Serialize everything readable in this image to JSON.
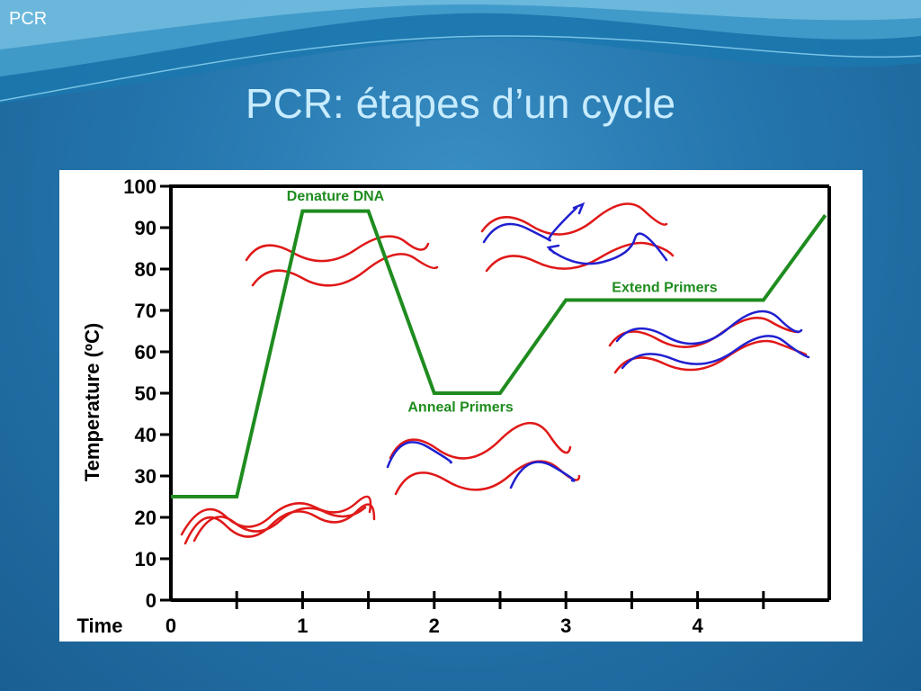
{
  "header": {
    "corner_label": "PCR"
  },
  "slide": {
    "title": "PCR: étapes d’un cycle"
  },
  "colors": {
    "curve": "#1f8c1f",
    "dna_strand": "#e01818",
    "primer": "#2020d0",
    "annotation": "#1f8c1f"
  },
  "chart_data": {
    "type": "line",
    "title": "",
    "xlabel": "Time",
    "ylabel": "Temperature (ºC)",
    "xlim": [
      0,
      5
    ],
    "ylim": [
      0,
      100
    ],
    "x_ticks": [
      0,
      1,
      2,
      3,
      4
    ],
    "y_ticks": [
      0,
      10,
      20,
      30,
      40,
      50,
      60,
      70,
      80,
      90,
      100
    ],
    "series": [
      {
        "x": [
          0,
          0.5,
          1.0,
          1.5,
          2.0,
          2.5,
          3.0,
          4.5,
          4.97
        ],
        "y": [
          25,
          25,
          94,
          94,
          50,
          50,
          72.5,
          72.5,
          93
        ]
      }
    ],
    "annotations": [
      {
        "text": "Denature DNA",
        "x": 1.25,
        "y": 96.5
      },
      {
        "text": "Anneal Primers",
        "x": 2.2,
        "y": 45.5
      },
      {
        "text": "Extend Primers",
        "x": 3.75,
        "y": 74.5
      }
    ],
    "grid": false,
    "legend": "none"
  }
}
